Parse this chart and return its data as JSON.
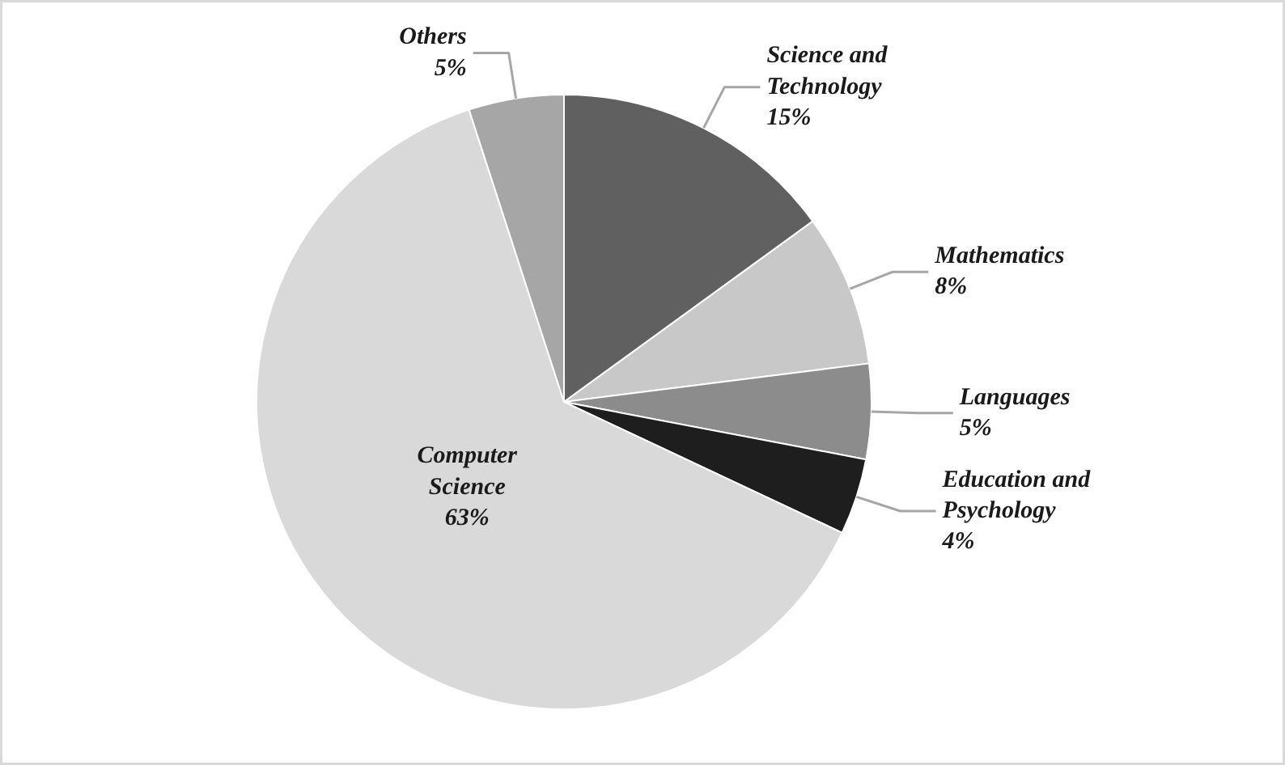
{
  "chart_data": {
    "type": "pie",
    "categories": [
      "Science and Technology",
      "Mathematics",
      "Languages",
      "Education and Psychology",
      "Computer Science",
      "Others"
    ],
    "values": [
      15,
      8,
      5,
      4,
      63,
      5
    ],
    "value_labels": [
      "15%",
      "8%",
      "5%",
      "4%",
      "63%",
      "5%"
    ],
    "colors": [
      "#606060",
      "#c8c8c8",
      "#8c8c8c",
      "#1e1e1e",
      "#d9d9d9",
      "#a6a6a6"
    ]
  }
}
